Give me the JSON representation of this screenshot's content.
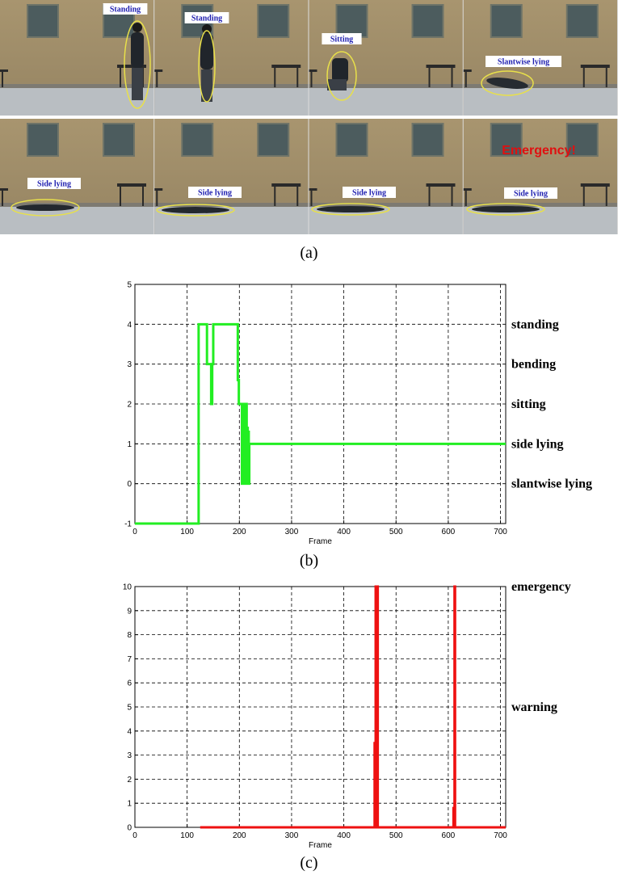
{
  "panel_a": {
    "caption": "(a)",
    "top_labels": [
      "Standing",
      "Standing",
      "Sitting",
      "Slantwise lying"
    ],
    "bottom_labels": [
      "Side lying",
      "Side lying",
      "Side lying",
      "Side lying"
    ],
    "emergency_text": "Emergency!"
  },
  "chart_data": [
    {
      "type": "line",
      "caption": "(b)",
      "xlabel": "Frame",
      "ylabel": "",
      "xlim": [
        0,
        710
      ],
      "ylim": [
        -1,
        5
      ],
      "xticks": [
        0,
        100,
        200,
        300,
        400,
        500,
        600,
        700
      ],
      "yticks": [
        -1,
        0,
        1,
        2,
        3,
        4,
        5
      ],
      "right_labels": [
        {
          "y": 4,
          "text": "standing"
        },
        {
          "y": 3,
          "text": "bending"
        },
        {
          "y": 2,
          "text": "sitting"
        },
        {
          "y": 1,
          "text": "side lying"
        },
        {
          "y": 0,
          "text": "slantwise lying"
        }
      ],
      "grid": true,
      "color": "#22ee22",
      "series": [
        {
          "x": [
            0,
            122,
            122,
            124,
            124,
            138,
            138,
            143,
            143,
            146,
            146,
            148,
            148,
            150,
            150,
            152,
            152,
            197,
            197,
            199,
            199,
            201,
            201,
            205,
            205,
            207,
            207,
            208,
            208,
            209,
            209,
            210,
            210,
            211,
            211,
            212,
            212,
            213,
            213,
            214,
            214,
            215,
            215,
            216,
            216,
            217,
            217,
            218,
            218,
            219,
            219,
            221,
            221,
            710
          ],
          "y": [
            -1,
            -1,
            4,
            4,
            4,
            4,
            3,
            3,
            3,
            3,
            2,
            2,
            3,
            3,
            4,
            4,
            4,
            4,
            2.6,
            2.6,
            2,
            2,
            2,
            2,
            0,
            0,
            2,
            2,
            0,
            0,
            2,
            2,
            0,
            0,
            1.5,
            1.5,
            0,
            0,
            2,
            2,
            0,
            0,
            1.4,
            1.4,
            0,
            0,
            1.3,
            1.3,
            0,
            0,
            1,
            1,
            1,
            1
          ]
        }
      ]
    },
    {
      "type": "line",
      "caption": "(c)",
      "xlabel": "Frame",
      "ylabel": "",
      "xlim": [
        0,
        710
      ],
      "ylim": [
        0,
        10
      ],
      "xticks": [
        0,
        100,
        200,
        300,
        400,
        500,
        600,
        700
      ],
      "yticks": [
        0,
        1,
        2,
        3,
        4,
        5,
        6,
        7,
        8,
        9,
        10
      ],
      "right_labels": [
        {
          "y": 10,
          "text": "emergency"
        },
        {
          "y": 5,
          "text": "warning"
        }
      ],
      "grid": true,
      "color": "#ee1111",
      "series": [
        {
          "x": [
            125,
            459,
            459,
            460,
            460,
            461,
            461,
            462,
            462,
            463,
            463,
            464,
            464,
            465,
            465,
            610,
            610,
            612,
            612,
            613,
            613,
            614,
            614,
            710
          ],
          "y": [
            0,
            0,
            3.5,
            3.5,
            0,
            0,
            10,
            10,
            0,
            0,
            4.5,
            4.5,
            10,
            10,
            0,
            0,
            0.8,
            0.8,
            10,
            10,
            0,
            0,
            0,
            0
          ]
        }
      ]
    }
  ]
}
